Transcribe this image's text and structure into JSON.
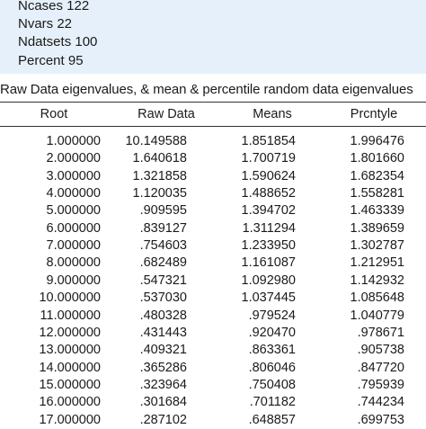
{
  "params": [
    "Ncases 122",
    "Nvars 22",
    "Ndatsets 100",
    "Percent 95"
  ],
  "caption": "Raw Data eigenvalues, & mean & percentile random data eigenvalues",
  "columns": [
    "Root",
    "Raw Data",
    "Means",
    "Prcntyle"
  ],
  "rows": [
    [
      "1.000000",
      "10.149588",
      "1.851854",
      "1.996476"
    ],
    [
      "2.000000",
      "1.640618",
      "1.700719",
      "1.801660"
    ],
    [
      "3.000000",
      "1.321858",
      "1.590624",
      "1.682354"
    ],
    [
      "4.000000",
      "1.120035",
      "1.488652",
      "1.558281"
    ],
    [
      "5.000000",
      ".909595",
      "1.394702",
      "1.463339"
    ],
    [
      "6.000000",
      ".839127",
      "1.311294",
      "1.389659"
    ],
    [
      "7.000000",
      ".754603",
      "1.233950",
      "1.302787"
    ],
    [
      "8.000000",
      ".682489",
      "1.161087",
      "1.212951"
    ],
    [
      "9.000000",
      ".547321",
      "1.092980",
      "1.142932"
    ],
    [
      "10.000000",
      ".537030",
      "1.037445",
      "1.085648"
    ],
    [
      "11.000000",
      ".480328",
      ".979524",
      "1.040779"
    ],
    [
      "12.000000",
      ".431443",
      ".920470",
      ".978671"
    ],
    [
      "13.000000",
      ".409321",
      ".863361",
      ".905738"
    ],
    [
      "14.000000",
      ".365286",
      ".806046",
      ".847720"
    ],
    [
      "15.000000",
      ".323964",
      ".750408",
      ".795939"
    ],
    [
      "16.000000",
      ".301684",
      ".701182",
      ".744234"
    ],
    [
      "17.000000",
      ".287102",
      ".648857",
      ".699753"
    ]
  ]
}
